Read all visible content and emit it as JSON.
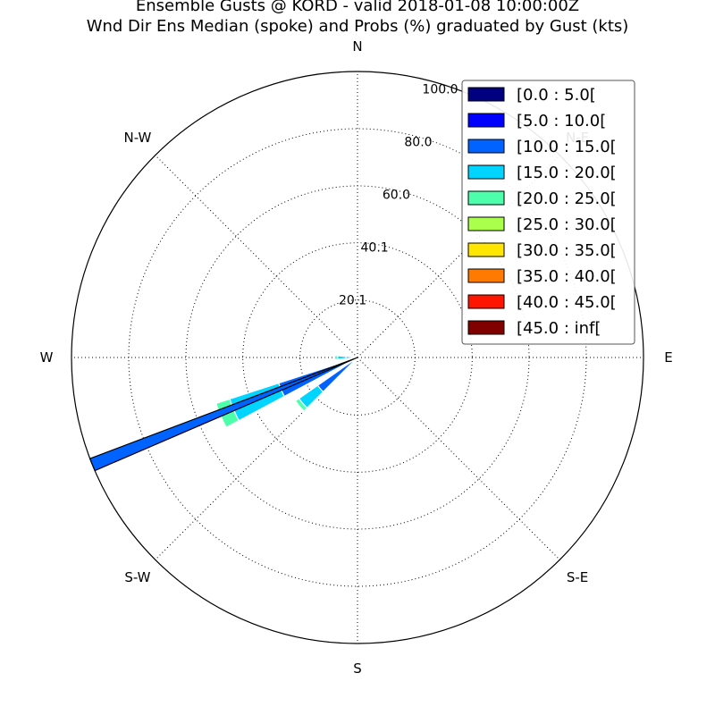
{
  "chart_data": {
    "type": "windrose",
    "title": "Ensemble Gusts @ KORD - valid 2018-01-08 10:00:00Z",
    "subtitle": "Wnd Dir Ens Median (spoke) and Probs (%) graduated by Gust (kts)",
    "directions": [
      {
        "label": "N",
        "angle": 0
      },
      {
        "label": "N-E",
        "angle": 45
      },
      {
        "label": "E",
        "angle": 90
      },
      {
        "label": "S-E",
        "angle": 135
      },
      {
        "label": "S",
        "angle": 180
      },
      {
        "label": "S-W",
        "angle": 225
      },
      {
        "label": "W",
        "angle": 270
      },
      {
        "label": "N-W",
        "angle": 315
      }
    ],
    "radial_ticks": [
      {
        "value": 20.1,
        "label": "20.1"
      },
      {
        "value": 40.1,
        "label": "40.1"
      },
      {
        "value": 60.0,
        "label": "60.0"
      },
      {
        "value": 80.0,
        "label": "80.0"
      },
      {
        "value": 100.0,
        "label": "100.0"
      }
    ],
    "rmax": 100,
    "grid": true,
    "legend_position": "top-right",
    "bins": [
      {
        "label": "[0.0 : 5.0[",
        "color": "#000080"
      },
      {
        "label": "[5.0 : 10.0[",
        "color": "#0000ff"
      },
      {
        "label": "[10.0 : 15.0[",
        "color": "#0062ff"
      },
      {
        "label": "[15.0 : 20.0[",
        "color": "#00d4ff"
      },
      {
        "label": "[20.0 : 25.0[",
        "color": "#4dffaa"
      },
      {
        "label": "[25.0 : 30.0[",
        "color": "#aaff4d"
      },
      {
        "label": "[30.0 : 35.0[",
        "color": "#ffe600"
      },
      {
        "label": "[35.0 : 40.0[",
        "color": "#ff7a00"
      },
      {
        "label": "[40.0 : 45.0[",
        "color": "#ff1400"
      },
      {
        "label": "[45.0 : inf[",
        "color": "#800000"
      }
    ],
    "sectors": [
      {
        "direction": 230,
        "width": 10,
        "stack": [
          0,
          1,
          16,
          8,
          1.5,
          0,
          0,
          0,
          0,
          0
        ]
      },
      {
        "direction": 247,
        "width": 10,
        "stack": [
          0,
          1,
          28,
          18,
          5,
          0,
          0,
          0,
          0,
          0
        ]
      },
      {
        "direction": 270,
        "width": 10,
        "stack": [
          0,
          0,
          4,
          3,
          1,
          0,
          0,
          0,
          0,
          0
        ]
      }
    ],
    "median_spoke": {
      "direction": 248,
      "value": 100,
      "color": "#0062ff"
    }
  }
}
